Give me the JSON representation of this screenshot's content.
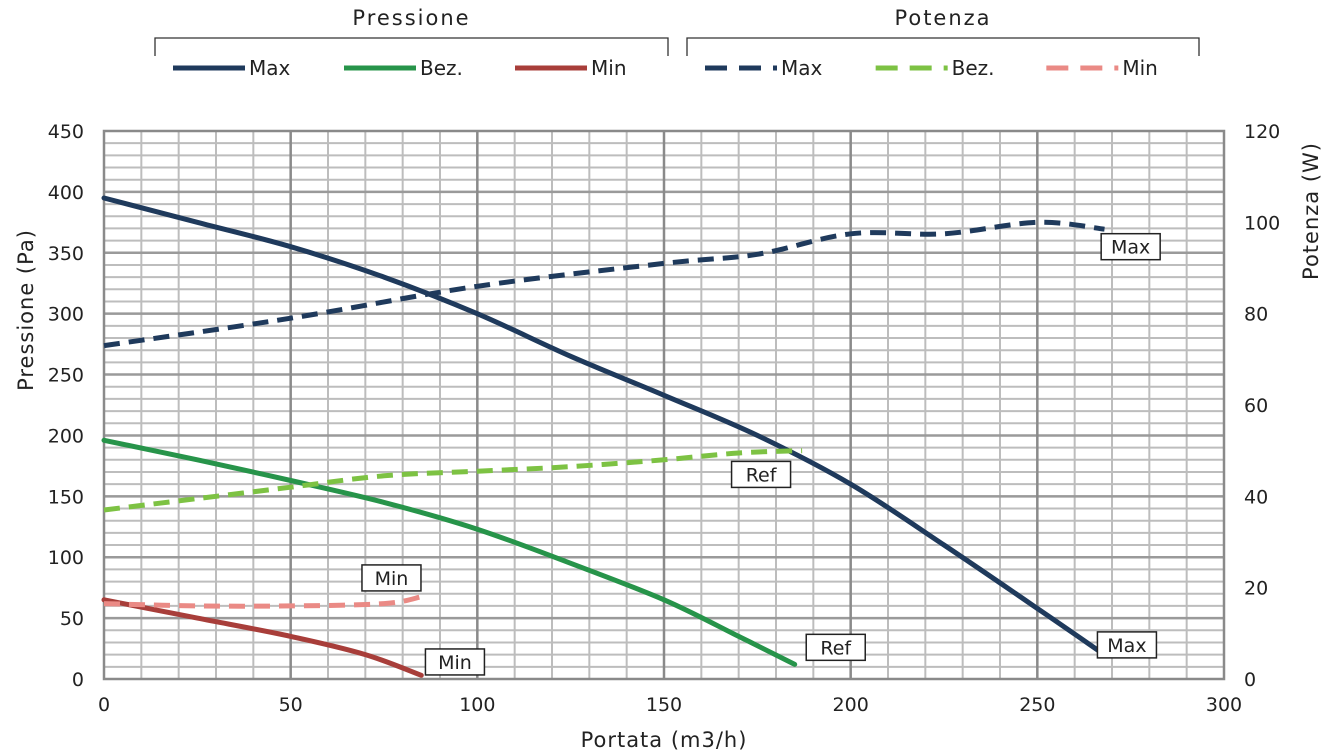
{
  "chart_data": {
    "type": "line",
    "legend_groups": [
      {
        "title": "Pressione",
        "entries": [
          "Max",
          "Bez.",
          "Min"
        ]
      },
      {
        "title": "Potenza",
        "entries": [
          "Max",
          "Bez.",
          "Min"
        ]
      }
    ],
    "xlabel": "Portata (m3/h)",
    "ylabel_left": "Pressione (Pa)",
    "ylabel_right": "Potenza (W)",
    "xlim": [
      0,
      300
    ],
    "ylim_left": [
      0,
      450
    ],
    "ylim_right": [
      0,
      120
    ],
    "x_ticks": [
      "0",
      "50",
      "100",
      "150",
      "200",
      "250",
      "300"
    ],
    "y_left_ticks": [
      "0",
      "50",
      "100",
      "150",
      "200",
      "250",
      "300",
      "350",
      "400",
      "450"
    ],
    "y_right_ticks": [
      "0",
      "20",
      "40",
      "60",
      "80",
      "100",
      "120"
    ],
    "grid": true,
    "legend_placement": "top",
    "series": [
      {
        "group": "Pressione",
        "name": "Max",
        "axis": "left",
        "style": "solid",
        "color": "#1f3a5c",
        "points": [
          [
            0,
            395
          ],
          [
            25,
            375
          ],
          [
            50,
            355
          ],
          [
            75,
            330
          ],
          [
            100,
            300
          ],
          [
            125,
            265
          ],
          [
            150,
            233
          ],
          [
            175,
            200
          ],
          [
            200,
            160
          ],
          [
            225,
            110
          ],
          [
            250,
            58
          ],
          [
            267,
            22
          ]
        ]
      },
      {
        "group": "Pressione",
        "name": "Bez.",
        "axis": "left",
        "style": "solid",
        "color": "#27944a",
        "points": [
          [
            0,
            196
          ],
          [
            25,
            180
          ],
          [
            50,
            163
          ],
          [
            75,
            145
          ],
          [
            100,
            123
          ],
          [
            125,
            95
          ],
          [
            150,
            65
          ],
          [
            170,
            35
          ],
          [
            185,
            12
          ]
        ]
      },
      {
        "group": "Pressione",
        "name": "Min",
        "axis": "left",
        "style": "solid",
        "color": "#a83e3a",
        "points": [
          [
            0,
            65
          ],
          [
            25,
            50
          ],
          [
            50,
            35
          ],
          [
            70,
            20
          ],
          [
            85,
            3
          ]
        ]
      },
      {
        "group": "Potenza",
        "name": "Max",
        "axis": "right",
        "style": "dashed",
        "color": "#1f3a5c",
        "points": [
          [
            0,
            73
          ],
          [
            50,
            79
          ],
          [
            100,
            86
          ],
          [
            150,
            91
          ],
          [
            175,
            93
          ],
          [
            200,
            97.5
          ],
          [
            225,
            97.5
          ],
          [
            250,
            100
          ],
          [
            268,
            98.5
          ]
        ]
      },
      {
        "group": "Potenza",
        "name": "Bez.",
        "axis": "right",
        "style": "dashed",
        "color": "#7dc243",
        "points": [
          [
            0,
            37
          ],
          [
            25,
            39.5
          ],
          [
            50,
            42
          ],
          [
            75,
            44.5
          ],
          [
            100,
            45.5
          ],
          [
            125,
            46.5
          ],
          [
            150,
            48
          ],
          [
            170,
            49.5
          ],
          [
            187,
            50
          ]
        ]
      },
      {
        "group": "Potenza",
        "name": "Min",
        "axis": "right",
        "style": "dashed",
        "color": "#ea8a85",
        "points": [
          [
            0,
            16.5
          ],
          [
            25,
            16
          ],
          [
            50,
            16
          ],
          [
            75,
            16.5
          ],
          [
            85,
            18
          ]
        ]
      }
    ],
    "annotations": [
      {
        "text": "Max",
        "x": 275,
        "y": 355
      },
      {
        "text": "Ref",
        "x": 176,
        "y": 168
      },
      {
        "text": "Min",
        "x": 77,
        "y": 83
      },
      {
        "text": "Max",
        "x": 274,
        "y": 28
      },
      {
        "text": "Ref",
        "x": 196,
        "y": 26
      },
      {
        "text": "Min",
        "x": 94,
        "y": 14
      }
    ]
  }
}
